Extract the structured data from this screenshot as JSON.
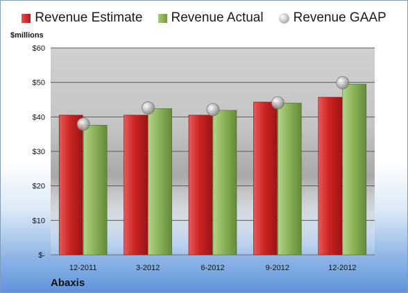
{
  "legend": {
    "estimate": "Revenue Estimate",
    "actual": "Revenue Actual",
    "gaap": "Revenue GAAP"
  },
  "unit_label": "$millions",
  "company": "Abaxis",
  "colors": {
    "estimate": "#c62828",
    "actual": "#8db35a",
    "gaap": "#b5b5b5"
  },
  "chart_data": {
    "type": "bar",
    "title": "",
    "xlabel": "",
    "ylabel": "$millions",
    "categories": [
      "12-2011",
      "3-2012",
      "6-2012",
      "9-2012",
      "12-2012"
    ],
    "series": [
      {
        "name": "Revenue Estimate",
        "type": "bar",
        "values": [
          40.5,
          40.5,
          40.5,
          44.3,
          45.7
        ]
      },
      {
        "name": "Revenue Actual",
        "type": "bar",
        "values": [
          37.6,
          42.4,
          41.9,
          44.0,
          49.5
        ]
      },
      {
        "name": "Revenue GAAP",
        "type": "scatter",
        "values": [
          37.9,
          42.6,
          42.1,
          44.1,
          49.9
        ]
      }
    ],
    "ylim": [
      0,
      60
    ],
    "yticks": [
      0,
      10,
      20,
      30,
      40,
      50,
      60
    ],
    "ytick_labels": [
      "$-",
      "$10",
      "$20",
      "$30",
      "$40",
      "$50",
      "$60"
    ],
    "grid": true,
    "legend_position": "top"
  }
}
